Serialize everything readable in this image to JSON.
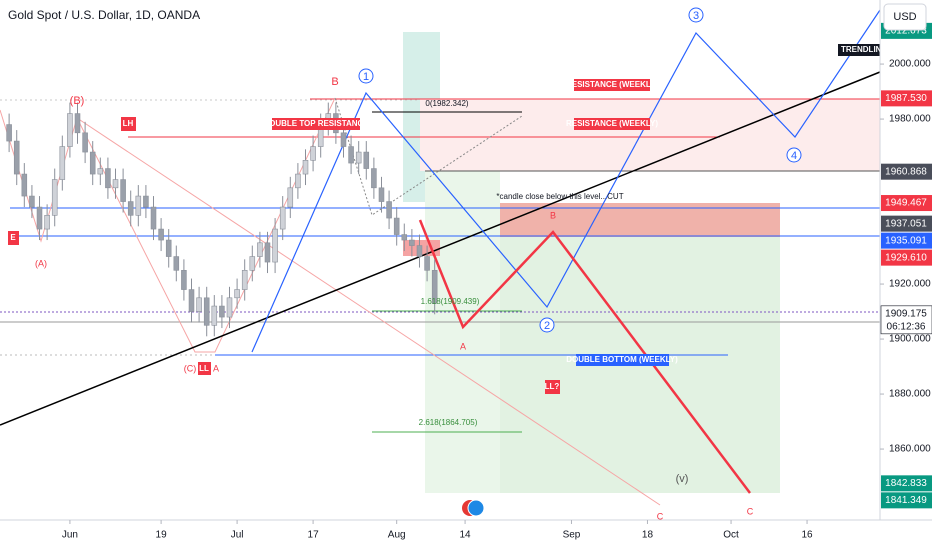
{
  "chart_data": {
    "type": "candlestick",
    "title": "Gold Spot / U.S. Dollar, 1D, OANDA",
    "currency": "USD",
    "up_color": "#cfd2d8",
    "down_color": "#9aa0aa",
    "xlim": [
      -9.2,
      106.6
    ],
    "ylim": [
      1834.2,
      2023.3
    ],
    "xticks": [
      {
        "value": 0,
        "label": "Jun"
      },
      {
        "value": 12,
        "label": "19"
      },
      {
        "value": 22,
        "label": "Jul"
      },
      {
        "value": 32,
        "label": "17"
      },
      {
        "value": 43,
        "label": "Aug"
      },
      {
        "value": 52,
        "label": "14"
      },
      {
        "value": 66,
        "label": "Sep"
      },
      {
        "value": 76,
        "label": "18"
      },
      {
        "value": 87,
        "label": "Oct"
      },
      {
        "value": 97,
        "label": "16"
      }
    ],
    "yticks": [
      {
        "value": 2000,
        "label": "2000.000"
      },
      {
        "value": 1980,
        "label": "1980.000"
      },
      {
        "value": 1920,
        "label": "1920.000"
      },
      {
        "value": 1900,
        "label": "1900.000"
      },
      {
        "value": 1880,
        "label": "1880.000"
      },
      {
        "value": 1860,
        "label": "1860.000"
      }
    ],
    "x": [
      -8,
      -7,
      -6,
      -5,
      -4,
      -3,
      -2,
      -1,
      0,
      1,
      2,
      3,
      4,
      5,
      6,
      7,
      8,
      9,
      10,
      11,
      12,
      13,
      14,
      15,
      16,
      17,
      18,
      19,
      20,
      21,
      22,
      23,
      24,
      25,
      26,
      27,
      28,
      29,
      30,
      31,
      32,
      33,
      34,
      35,
      36,
      37,
      38,
      39,
      40,
      41,
      42,
      43,
      44,
      45,
      46,
      47,
      48
    ],
    "open": [
      1978,
      1972,
      1960,
      1952,
      1948,
      1940,
      1945,
      1958,
      1970,
      1982,
      1975,
      1968,
      1960,
      1962,
      1955,
      1958,
      1950,
      1945,
      1952,
      1948,
      1940,
      1936,
      1930,
      1925,
      1918,
      1910,
      1915,
      1905,
      1912,
      1908,
      1915,
      1918,
      1925,
      1930,
      1935,
      1928,
      1940,
      1948,
      1955,
      1960,
      1965,
      1970,
      1978,
      1982,
      1975,
      1970,
      1964,
      1968,
      1962,
      1955,
      1950,
      1944,
      1938,
      1936,
      1934,
      1930,
      1925
    ],
    "high": [
      1982,
      1976,
      1964,
      1956,
      1952,
      1949,
      1962,
      1974,
      1986,
      1986,
      1979,
      1972,
      1966,
      1966,
      1962,
      1962,
      1954,
      1956,
      1956,
      1952,
      1944,
      1940,
      1934,
      1929,
      1922,
      1919,
      1919,
      1916,
      1916,
      1919,
      1922,
      1929,
      1934,
      1939,
      1939,
      1944,
      1952,
      1959,
      1964,
      1969,
      1974,
      1982,
      1986,
      1986,
      1979,
      1974,
      1972,
      1972,
      1966,
      1959,
      1954,
      1948,
      1942,
      1940,
      1938,
      1934,
      1929
    ],
    "low": [
      1968,
      1956,
      1948,
      1944,
      1936,
      1936,
      1941,
      1954,
      1966,
      1971,
      1964,
      1956,
      1956,
      1951,
      1951,
      1946,
      1941,
      1941,
      1944,
      1936,
      1932,
      1926,
      1921,
      1914,
      1906,
      1906,
      1901,
      1901,
      1904,
      1904,
      1911,
      1914,
      1921,
      1926,
      1924,
      1924,
      1936,
      1944,
      1951,
      1956,
      1961,
      1966,
      1974,
      1971,
      1966,
      1960,
      1960,
      1958,
      1951,
      1946,
      1940,
      1934,
      1932,
      1930,
      1926,
      1921,
      1909
    ],
    "close": [
      1972,
      1960,
      1952,
      1948,
      1940,
      1945,
      1958,
      1970,
      1982,
      1975,
      1968,
      1960,
      1962,
      1955,
      1958,
      1950,
      1945,
      1952,
      1948,
      1940,
      1936,
      1930,
      1925,
      1918,
      1910,
      1915,
      1905,
      1912,
      1908,
      1915,
      1918,
      1925,
      1930,
      1935,
      1928,
      1940,
      1948,
      1955,
      1960,
      1965,
      1970,
      1978,
      1982,
      1975,
      1970,
      1964,
      1968,
      1962,
      1955,
      1950,
      1944,
      1938,
      1936,
      1934,
      1930,
      1925,
      1913
    ],
    "price_badges": [
      {
        "value": 2012.073,
        "label": "2012.073",
        "color": "#089981"
      },
      {
        "value": 1987.53,
        "label": "1987.530",
        "color": "#f23645"
      },
      {
        "value": 1960.868,
        "label": "1960.868",
        "color": "#4a4e5a"
      },
      {
        "value": 1949.467,
        "label": "1949.467",
        "color": "#f23645"
      },
      {
        "value": 1937.051,
        "label": "1937.051",
        "color": "#4a4e5a"
      },
      {
        "value": 1935.091,
        "label": "1935.091",
        "color": "#2962ff"
      },
      {
        "value": 1929.61,
        "label": "1929.610",
        "color": "#f23645"
      },
      {
        "value": 1909.175,
        "label": "1909.175",
        "color": "#ffffff",
        "sublabel": "06:12:36"
      },
      {
        "value": 1842.833,
        "label": "1842.833",
        "color": "#089981"
      },
      {
        "value": 1841.349,
        "label": "1841.349",
        "color": "#089981"
      }
    ],
    "annotations": [
      "B",
      "1",
      "(B)",
      "LH",
      "DOUBLE TOP RESISTANCE",
      "RESISTANCE (WEEKLY)",
      "RESISTANCE (WEEKLY)",
      "0(1982.342)",
      "*candle close below this level...CUT",
      "B",
      "E",
      "(A)",
      "1.618(1909.439)",
      "2",
      "A",
      "(C)",
      "LL",
      "A",
      "DOUBLE BOTTOM (WEEKLY)",
      "LL?",
      "2.618(1864.705)",
      "(v)",
      "C",
      "C",
      "3",
      "4",
      "TRENDLINE ("
    ]
  }
}
